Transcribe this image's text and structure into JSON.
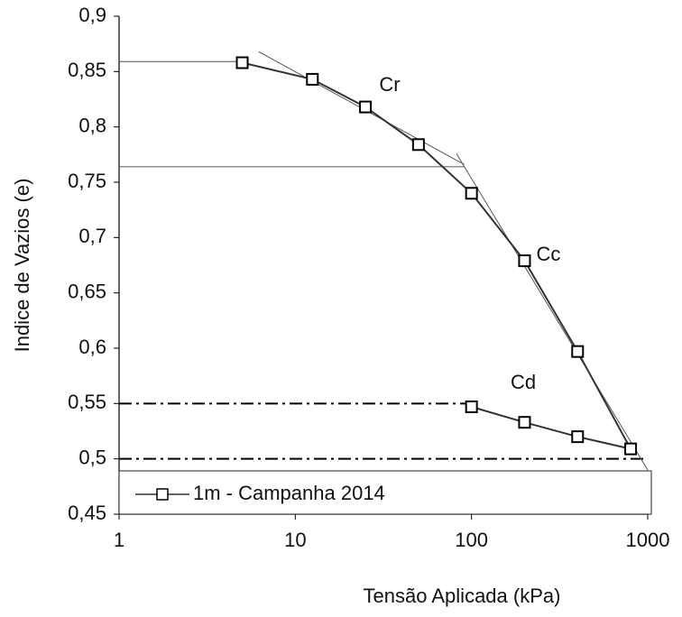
{
  "chart_data": {
    "type": "line",
    "x_label": "Tensão Aplicada (kPa)",
    "y_label": "Indice de Vazios (e)",
    "xlim": [
      1,
      1000
    ],
    "xticks": [
      1,
      10,
      100,
      1000
    ],
    "xscale": "log",
    "ylim": [
      0.45,
      0.9
    ],
    "yticks": [
      {
        "value": 0.45,
        "label": "0,45"
      },
      {
        "value": 0.5,
        "label": "0,5"
      },
      {
        "value": 0.55,
        "label": "0,55"
      },
      {
        "value": 0.6,
        "label": "0,6"
      },
      {
        "value": 0.65,
        "label": "0,65"
      },
      {
        "value": 0.7,
        "label": "0,7"
      },
      {
        "value": 0.75,
        "label": "0,75"
      },
      {
        "value": 0.8,
        "label": "0,8"
      },
      {
        "value": 0.85,
        "label": "0,85"
      },
      {
        "value": 0.9,
        "label": "0,9"
      }
    ],
    "series": [
      {
        "name": "1m - Campanha 2014",
        "color": "#333333",
        "x": [
          5,
          12.5,
          25,
          50,
          100,
          200,
          400,
          800,
          400,
          200,
          100
        ],
        "values": [
          0.858,
          0.843,
          0.818,
          0.784,
          0.74,
          0.679,
          0.597,
          0.509,
          0.52,
          0.533,
          0.547
        ]
      }
    ],
    "reference_lines": [
      {
        "x": [
          1,
          5
        ],
        "y": [
          0.859,
          0.859
        ],
        "style": "solid"
      },
      {
        "x": [
          1,
          91
        ],
        "y": [
          0.764,
          0.764
        ],
        "style": "solid"
      },
      {
        "x": [
          1,
          100
        ],
        "y": [
          0.55,
          0.55
        ],
        "style": "dashdot"
      },
      {
        "x": [
          1,
          1000
        ],
        "y": [
          0.5,
          0.5
        ],
        "style": "dashdot"
      },
      {
        "x": [
          6.2,
          91
        ],
        "y": [
          0.868,
          0.766
        ],
        "style": "solid"
      },
      {
        "x": [
          82,
          1000
        ],
        "y": [
          0.776,
          0.49
        ],
        "style": "solid"
      }
    ],
    "annotations": [
      "Cr",
      "Cc",
      "Cd"
    ],
    "legend": "bottom-left"
  }
}
